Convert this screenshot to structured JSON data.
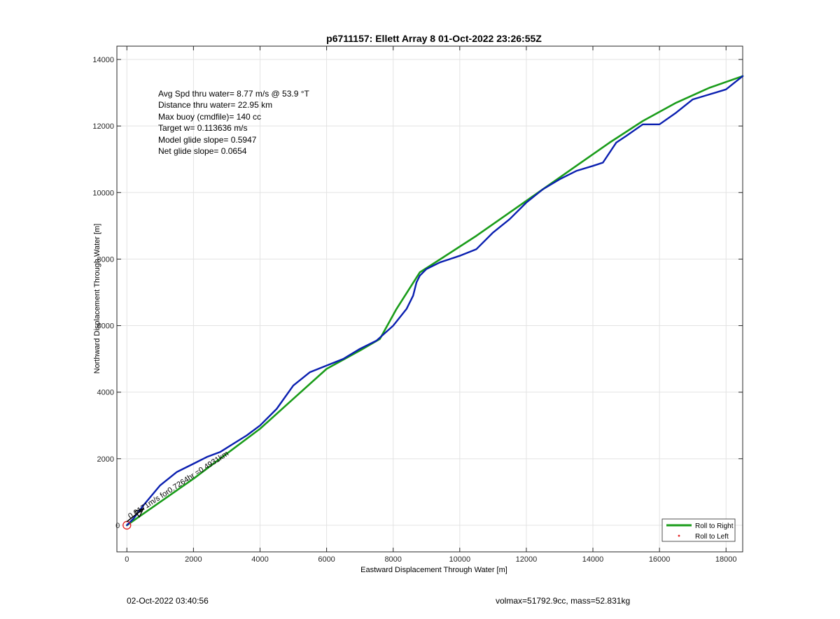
{
  "chart_data": {
    "type": "line",
    "title": "p6711157: Ellett Array 8 01-Oct-2022 23:26:55Z",
    "xlabel": "Eastward Displacement Through Water [m]",
    "ylabel": "Northward Displacement Through Water [m]",
    "xlim": [
      -300,
      18500
    ],
    "ylim": [
      -800,
      14400
    ],
    "xticks": [
      0,
      2000,
      4000,
      6000,
      8000,
      10000,
      12000,
      14000,
      16000,
      18000
    ],
    "yticks": [
      2000,
      4000,
      6000,
      8000,
      10000,
      12000,
      14000
    ],
    "ytick_zero_label": "0",
    "grid": true,
    "legend_position": "bottom-right",
    "annotations": [
      "Avg Spd thru water=  8.77 m/s @  53.9 °T",
      "Distance thru water= 22.95 km",
      "Max buoy (cmdfile)= 140 cc",
      "Target w= 0.113636 m/s",
      "Model glide slope= 0.5947",
      "Net glide slope= 0.0654"
    ],
    "vector_label": "0.0171m/s for0.7264hr =0.4931km",
    "series": [
      {
        "name": "Roll to Right",
        "color": "#1a9c1a",
        "x": [
          0,
          1000,
          2000,
          3000,
          4000,
          5000,
          6000,
          7000,
          7600,
          8100,
          8800,
          9500,
          10500,
          11500,
          12500,
          13500,
          14500,
          15500,
          16500,
          17500,
          18500
        ],
        "y": [
          0,
          700,
          1400,
          2150,
          2900,
          3800,
          4700,
          5250,
          5600,
          6500,
          7600,
          8050,
          8700,
          9400,
          10100,
          10800,
          11500,
          12150,
          12700,
          13150,
          13500
        ]
      },
      {
        "name": "Roll to Left",
        "color": "#e31a1c",
        "x": [
          0
        ],
        "y": [
          0
        ]
      },
      {
        "name": "",
        "color": "#0a1fb0",
        "x": [
          0,
          200,
          500,
          1000,
          1500,
          2000,
          2400,
          2800,
          3200,
          3600,
          4000,
          4500,
          5000,
          5500,
          6000,
          6500,
          7000,
          7500,
          8000,
          8400,
          8600,
          8700,
          8800,
          9000,
          9400,
          10000,
          10500,
          11000,
          11500,
          12000,
          12500,
          13000,
          13500,
          14000,
          14300,
          14700,
          15000,
          15500,
          16000,
          16500,
          17000,
          17500,
          18000,
          18500
        ],
        "y": [
          0,
          200,
          600,
          1200,
          1600,
          1850,
          2050,
          2200,
          2450,
          2700,
          3000,
          3500,
          4200,
          4600,
          4800,
          5000,
          5300,
          5550,
          6000,
          6500,
          6900,
          7300,
          7500,
          7700,
          7900,
          8100,
          8300,
          8800,
          9200,
          9700,
          10100,
          10400,
          10650,
          10800,
          10900,
          11500,
          11700,
          12050,
          12050,
          12400,
          12800,
          12950,
          13100,
          13500
        ]
      }
    ],
    "markers": [
      {
        "shape": "circle",
        "color": "#e31a1c",
        "x": 0,
        "y": 0
      }
    ]
  },
  "footer": {
    "left": "02-Oct-2022 03:40:56",
    "right": "volmax=51792.9cc, mass=52.831kg"
  }
}
